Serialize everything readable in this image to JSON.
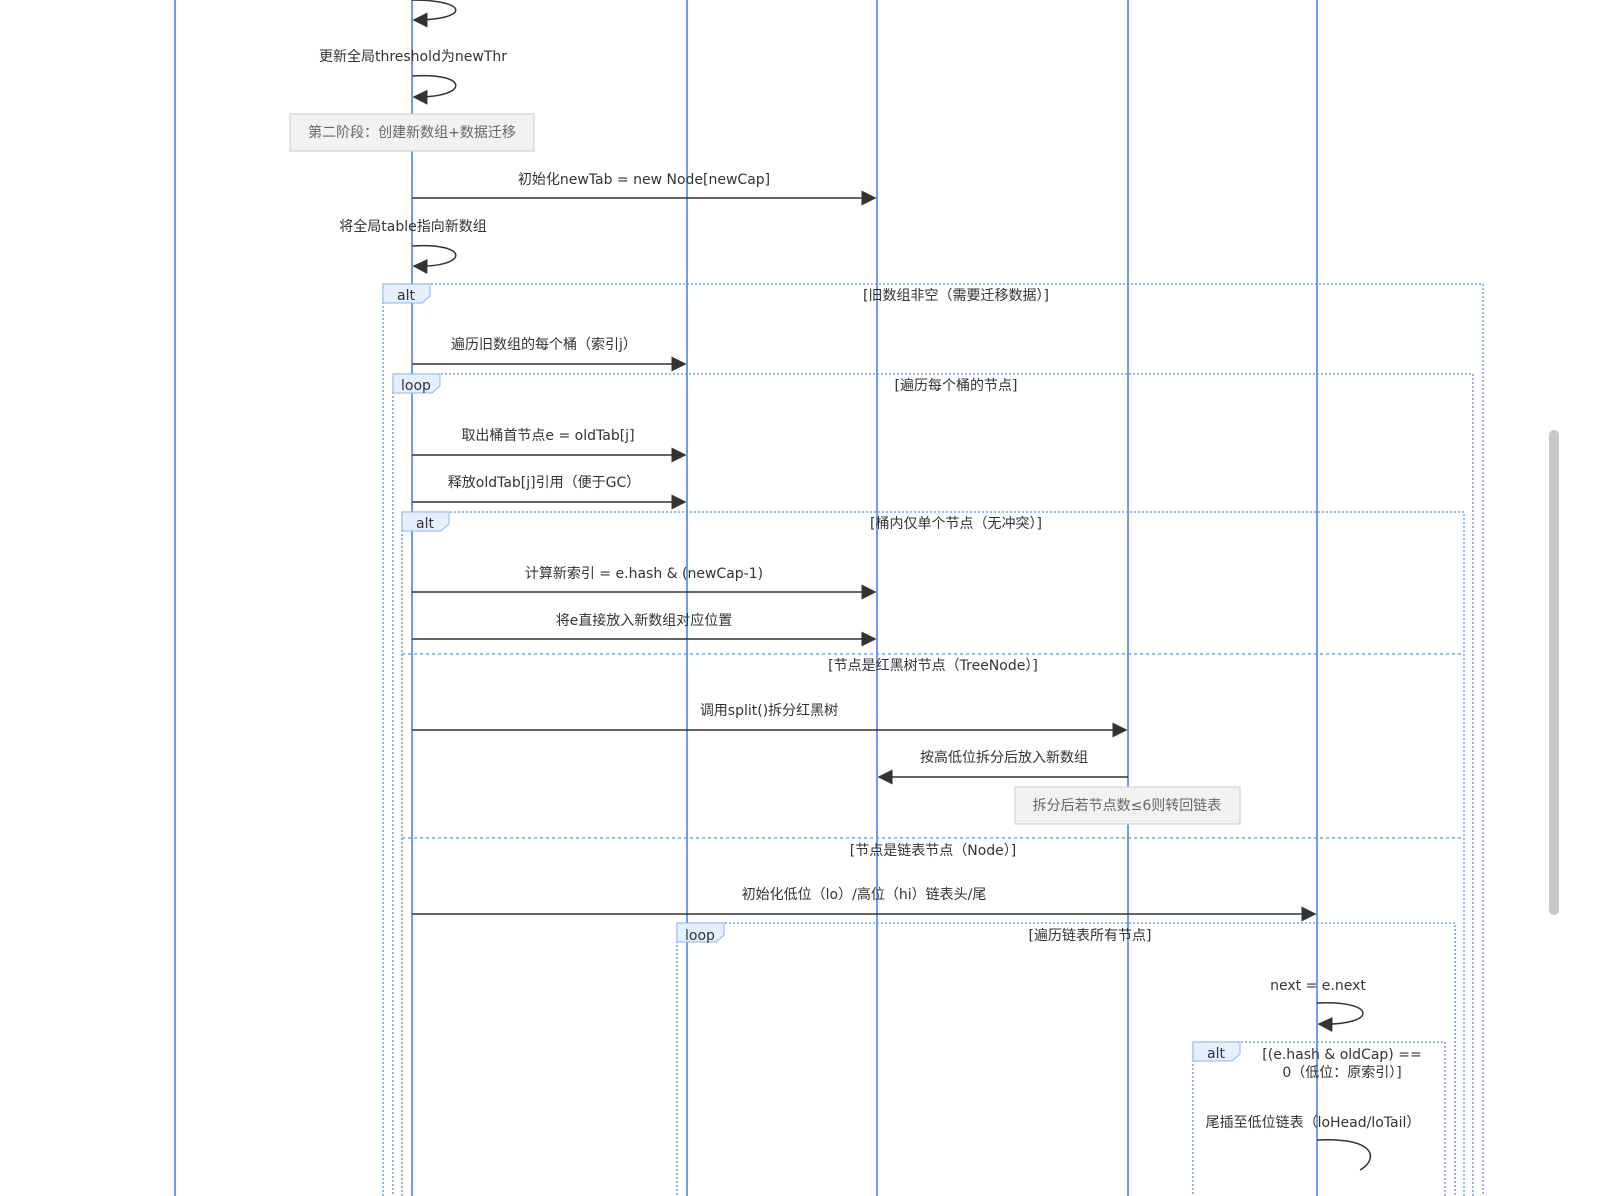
{
  "colors": {
    "lifeline": "#6f9cf0",
    "frame": "#5b8def",
    "tag_fill": "#e4efff",
    "note_fill": "#f2f2f2"
  },
  "messages": {
    "m1": "更新全局threshold为newThr",
    "m2": "初始化newTab = new Node[newCap]",
    "m3": "将全局table指向新数组",
    "m4": "遍历旧数组的每个桶（索引j）",
    "m5": "取出桶首节点e = oldTab[j]",
    "m6": "释放oldTab[j]引用（便于GC）",
    "m7": "计算新索引 = e.hash & (newCap-1)",
    "m8": "将e直接放入新数组对应位置",
    "m9": "调用split()拆分红黑树",
    "m10": "按高低位拆分后放入新数组",
    "m11": "初始化低位（lo）/高位（hi）链表头/尾",
    "m12": "next = e.next",
    "m13": "尾插至低位链表（loHead/loTail）"
  },
  "notes": {
    "n1": "第二阶段：创建新数组+数据迁移",
    "n2": "拆分后若节点数≤6则转回链表"
  },
  "frames": {
    "alt1": {
      "tag": "alt",
      "cond": "[旧数组非空（需要迁移数据）]"
    },
    "loop1": {
      "tag": "loop",
      "cond": "[遍历每个桶的节点]"
    },
    "alt2": {
      "tag": "alt",
      "cond": "[桶内仅单个节点（无冲突）]",
      "else1": "[节点是红黑树节点（TreeNode）]",
      "else2": "[节点是链表节点（Node）]"
    },
    "loop2": {
      "tag": "loop",
      "cond": "[遍历链表所有节点]"
    },
    "alt3": {
      "tag": "alt",
      "cond_line1": "[(e.hash & oldCap) ==",
      "cond_line2": "0（低位：原索引）]"
    }
  }
}
